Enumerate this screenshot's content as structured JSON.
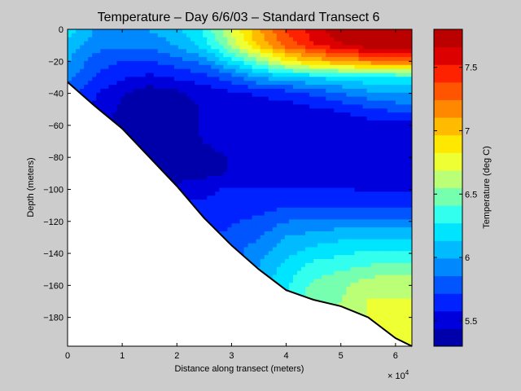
{
  "chart_data": {
    "type": "heatmap",
    "subtype": "filled-contour",
    "title": "Temperature – Day 6/6/03 – Standard Transect 6",
    "xlabel": "Distance along transect (meters)",
    "ylabel": "Depth (meters)",
    "x_multiplier_label": "× 10",
    "x_multiplier_exponent": "4",
    "xlim": [
      0,
      63000
    ],
    "ylim": [
      -198,
      0
    ],
    "xticks": [
      0,
      10000,
      20000,
      30000,
      40000,
      50000,
      60000
    ],
    "xtick_labels": [
      "0",
      "1",
      "2",
      "3",
      "4",
      "5",
      "6"
    ],
    "yticks": [
      0,
      -20,
      -40,
      -60,
      -80,
      -100,
      -120,
      -140,
      -160,
      -180
    ],
    "ytick_labels": [
      "0",
      "−20",
      "−40",
      "−60",
      "−80",
      "−100",
      "−120",
      "−140",
      "−160",
      "−180"
    ],
    "colorbar": {
      "label": "Temperature (deg C)",
      "min": 5.3,
      "max": 7.8,
      "step": 0.1,
      "ticks": [
        5.5,
        6,
        6.5,
        7,
        7.5
      ],
      "tick_labels": [
        "5.5",
        "6",
        "6.5",
        "7",
        "7.5"
      ],
      "colors": [
        "#0000aa",
        "#0000dd",
        "#0022ff",
        "#0055ff",
        "#0088ff",
        "#00bbff",
        "#00e5ff",
        "#33ffee",
        "#77ffb0",
        "#bbff77",
        "#eeff33",
        "#ffe800",
        "#ffbb00",
        "#ff8800",
        "#ff5500",
        "#ff2200",
        "#dd0000",
        "#bb0000"
      ]
    },
    "x": [
      0,
      5000,
      10000,
      15000,
      20000,
      25000,
      30000,
      35000,
      40000,
      45000,
      50000,
      55000,
      60000,
      63000
    ],
    "depth": [
      0,
      -10,
      -20,
      -30,
      -40,
      -50,
      -60,
      -70,
      -80,
      -90,
      -100,
      -110,
      -120,
      -130,
      -140,
      -150,
      -160,
      -170,
      -180,
      -190,
      -198
    ],
    "seabed_depth": [
      -33,
      -48,
      -62,
      -80,
      -98,
      -118,
      -135,
      -150,
      -163,
      -169,
      -173,
      -180,
      -193,
      -198
    ],
    "temperature": [
      [
        6.2,
        6.0,
        6.0,
        6.0,
        6.1,
        6.3,
        6.7,
        7.1,
        7.4,
        7.6,
        7.75,
        7.75,
        7.75,
        7.75
      ],
      [
        6.1,
        5.9,
        5.9,
        5.9,
        6.0,
        6.2,
        6.6,
        7.0,
        7.3,
        7.5,
        7.65,
        7.75,
        7.75,
        7.75
      ],
      [
        6.0,
        5.8,
        5.7,
        5.7,
        5.8,
        5.9,
        6.2,
        6.5,
        6.8,
        7.0,
        7.1,
        7.2,
        7.3,
        7.3
      ],
      [
        5.9,
        5.7,
        5.6,
        5.55,
        5.6,
        5.65,
        5.8,
        6.0,
        6.1,
        6.15,
        6.2,
        6.25,
        6.25,
        6.25
      ],
      [
        5.8,
        5.6,
        5.45,
        5.35,
        5.4,
        5.5,
        5.55,
        5.6,
        5.65,
        5.75,
        5.85,
        5.95,
        6.0,
        6.0
      ],
      [
        5.8,
        5.55,
        5.4,
        5.35,
        5.38,
        5.45,
        5.5,
        5.5,
        5.5,
        5.55,
        5.6,
        5.7,
        5.75,
        5.8
      ],
      [
        5.8,
        5.5,
        5.4,
        5.35,
        5.38,
        5.45,
        5.5,
        5.5,
        5.45,
        5.45,
        5.45,
        5.5,
        5.5,
        5.5
      ],
      [
        5.8,
        5.5,
        5.45,
        5.35,
        5.35,
        5.45,
        5.5,
        5.5,
        5.45,
        5.45,
        5.45,
        5.45,
        5.45,
        5.45
      ],
      [
        5.8,
        5.55,
        5.45,
        5.35,
        5.35,
        5.38,
        5.45,
        5.5,
        5.45,
        5.45,
        5.45,
        5.45,
        5.45,
        5.45
      ],
      [
        5.8,
        5.6,
        5.5,
        5.4,
        5.35,
        5.38,
        5.45,
        5.5,
        5.5,
        5.5,
        5.5,
        5.5,
        5.45,
        5.45
      ],
      [
        5.8,
        5.65,
        5.55,
        5.5,
        5.5,
        5.55,
        5.6,
        5.6,
        5.6,
        5.6,
        5.6,
        5.55,
        5.55,
        5.55
      ],
      [
        5.8,
        5.7,
        5.6,
        5.6,
        5.6,
        5.6,
        5.6,
        5.65,
        5.7,
        5.7,
        5.7,
        5.7,
        5.7,
        5.7
      ],
      [
        5.8,
        5.7,
        5.65,
        5.65,
        5.65,
        5.65,
        5.7,
        5.75,
        5.85,
        5.9,
        5.9,
        5.9,
        5.9,
        5.9
      ],
      [
        5.8,
        5.75,
        5.7,
        5.7,
        5.7,
        5.7,
        5.75,
        5.85,
        6.0,
        6.05,
        6.1,
        6.1,
        6.1,
        6.1
      ],
      [
        5.8,
        5.75,
        5.7,
        5.7,
        5.7,
        5.75,
        5.8,
        5.95,
        6.1,
        6.2,
        6.25,
        6.3,
        6.3,
        6.3
      ],
      [
        5.8,
        5.75,
        5.7,
        5.7,
        5.75,
        5.8,
        5.85,
        6.0,
        6.2,
        6.35,
        6.4,
        6.45,
        6.5,
        6.5
      ],
      [
        5.8,
        5.75,
        5.7,
        5.7,
        5.75,
        5.8,
        5.9,
        6.05,
        6.25,
        6.45,
        6.5,
        6.65,
        6.65,
        6.65
      ],
      [
        5.8,
        5.75,
        5.7,
        5.7,
        5.75,
        5.8,
        5.9,
        6.1,
        6.3,
        6.5,
        6.55,
        6.7,
        6.7,
        6.7
      ],
      [
        5.8,
        5.75,
        5.7,
        5.7,
        5.75,
        5.8,
        5.9,
        6.1,
        6.3,
        6.5,
        6.6,
        6.7,
        6.75,
        6.75
      ],
      [
        5.8,
        5.75,
        5.7,
        5.7,
        5.75,
        5.8,
        5.9,
        6.1,
        6.3,
        6.5,
        6.6,
        6.7,
        6.75,
        6.75
      ],
      [
        5.8,
        5.75,
        5.7,
        5.7,
        5.75,
        5.8,
        5.9,
        6.1,
        6.3,
        6.5,
        6.6,
        6.7,
        6.75,
        6.75
      ]
    ]
  }
}
